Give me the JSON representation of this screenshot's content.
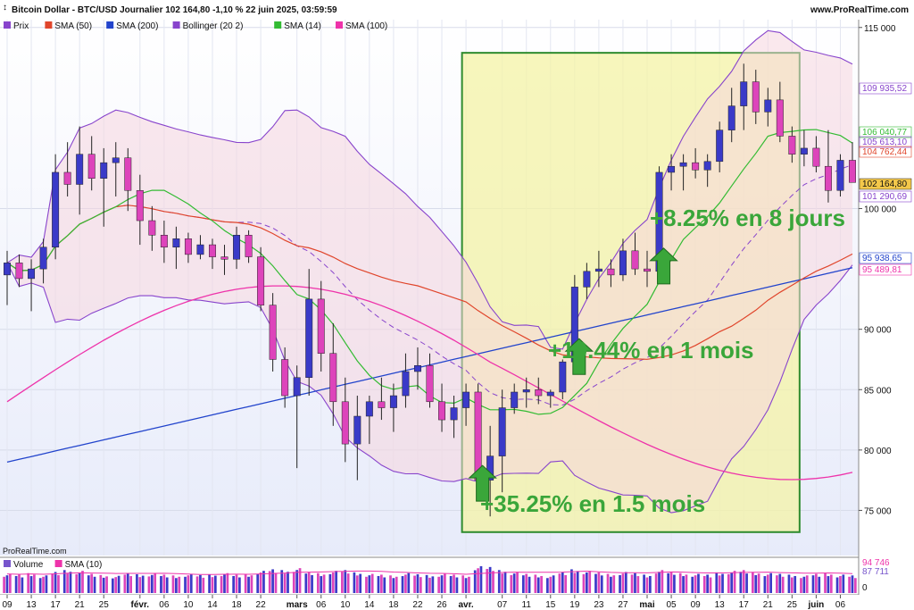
{
  "header": {
    "title": "Bitcoin Dollar - BTC/USD Journalier 102 164,80 -1,10 % 22 juin 2025, 03:59:59",
    "site": "www.ProRealTime.com",
    "watermark": "ProRealTime.com"
  },
  "legend": [
    {
      "label": "Prix",
      "color": "#8844cc"
    },
    {
      "label": "SMA (50)",
      "color": "#e0452b"
    },
    {
      "label": "SMA (200)",
      "color": "#2244cc"
    },
    {
      "label": "Bollinger (20 2)",
      "color": "#8844cc"
    },
    {
      "label": "SMA (14)",
      "color": "#33bb33"
    },
    {
      "label": "SMA (100)",
      "color": "#ee33aa"
    }
  ],
  "volume_legend": [
    {
      "label": "Volume",
      "color": "#7755cc"
    },
    {
      "label": "SMA (10)",
      "color": "#ee33aa"
    }
  ],
  "colors": {
    "up": "#3a3ac8",
    "down": "#dd44bb",
    "sma14": "#33bb33",
    "sma50": "#e0452b",
    "sma100": "#ee33aa",
    "sma200": "#2244cc",
    "bollinger": "#8844cc",
    "band_fill": "#f6d6de",
    "highlight_fill": "#f4f3a6",
    "highlight_border": "#2e8b2e",
    "arrow": "#3aa63a"
  },
  "annotations": [
    {
      "text": "+35.25% en 1.5 mois",
      "date_index": 39
    },
    {
      "text": "+19.44% en 1 mois",
      "date_index": 47
    },
    {
      "text": "+8.25% en 8 jours",
      "date_index": 54
    }
  ],
  "price_labels": [
    {
      "text": "109 935,52",
      "value": 109935.52,
      "color": "#8844cc"
    },
    {
      "text": "106 040,77",
      "value": 106040.77,
      "color": "#33bb33"
    },
    {
      "text": "105 613,10",
      "value": 105613.1,
      "color": "#8844cc"
    },
    {
      "text": "104 762,44",
      "value": 104762.44,
      "color": "#e0452b"
    },
    {
      "text": "102 164,80",
      "value": 102164.8,
      "color": "#111111",
      "boxed": true
    },
    {
      "text": "101 290,69",
      "value": 101290.69,
      "color": "#8844cc"
    },
    {
      "text": "95 938,65",
      "value": 95938.65,
      "color": "#2244cc"
    },
    {
      "text": "95 489,81",
      "value": 95489.81,
      "color": "#ee33aa"
    }
  ],
  "volume_labels": [
    {
      "text": "94 746",
      "color": "#ee33aa"
    },
    {
      "text": "87 711",
      "color": "#7755cc"
    },
    {
      "text": "0",
      "color": "#111111"
    }
  ],
  "chart_data": {
    "type": "candlestick",
    "y_ticks": [
      {
        "value": 115000,
        "label": "115 000"
      },
      {
        "value": 100000,
        "label": "100 000"
      },
      {
        "value": 90000,
        "label": "90 000"
      },
      {
        "value": 85000,
        "label": "85 000"
      },
      {
        "value": 80000,
        "label": "80 000"
      },
      {
        "value": 75000,
        "label": "75 000"
      }
    ],
    "ylim": [
      72000,
      115500
    ],
    "x_ticks": [
      {
        "label": "09",
        "index": 0
      },
      {
        "label": "13",
        "index": 2
      },
      {
        "label": "17",
        "index": 4
      },
      {
        "label": "21",
        "index": 6
      },
      {
        "label": "25",
        "index": 8
      },
      {
        "label": "févr.",
        "index": 11
      },
      {
        "label": "06",
        "index": 13
      },
      {
        "label": "10",
        "index": 15
      },
      {
        "label": "14",
        "index": 17
      },
      {
        "label": "18",
        "index": 19
      },
      {
        "label": "22",
        "index": 21
      },
      {
        "label": "mars",
        "index": 24
      },
      {
        "label": "06",
        "index": 26
      },
      {
        "label": "10",
        "index": 28
      },
      {
        "label": "14",
        "index": 30
      },
      {
        "label": "18",
        "index": 32
      },
      {
        "label": "22",
        "index": 34
      },
      {
        "label": "26",
        "index": 36
      },
      {
        "label": "avr.",
        "index": 38
      },
      {
        "label": "07",
        "index": 41
      },
      {
        "label": "11",
        "index": 43
      },
      {
        "label": "15",
        "index": 45
      },
      {
        "label": "19",
        "index": 47
      },
      {
        "label": "23",
        "index": 49
      },
      {
        "label": "27",
        "index": 51
      },
      {
        "label": "mai",
        "index": 53
      },
      {
        "label": "05",
        "index": 55
      },
      {
        "label": "09",
        "index": 57
      },
      {
        "label": "13",
        "index": 59
      },
      {
        "label": "17",
        "index": 61
      },
      {
        "label": "21",
        "index": 63
      },
      {
        "label": "25",
        "index": 65
      },
      {
        "label": "juin",
        "index": 67
      },
      {
        "label": "06",
        "index": 69
      }
    ],
    "highlight_range": {
      "start_index": 39,
      "end_index": 64,
      "y_low": 73200,
      "y_high": 112900
    },
    "candles": [
      [
        94500,
        96500,
        92000,
        95500
      ],
      [
        95500,
        96200,
        93500,
        94200
      ],
      [
        94200,
        95800,
        91500,
        95000
      ],
      [
        95000,
        97500,
        93800,
        96800
      ],
      [
        96800,
        104500,
        95800,
        103000
      ],
      [
        103000,
        105500,
        101000,
        102000
      ],
      [
        102000,
        106800,
        99500,
        104500
      ],
      [
        104500,
        106000,
        101500,
        102500
      ],
      [
        102500,
        105000,
        98500,
        103800
      ],
      [
        103800,
        105500,
        101000,
        104200
      ],
      [
        104200,
        105000,
        99800,
        101500
      ],
      [
        101500,
        102800,
        97000,
        99000
      ],
      [
        99000,
        100200,
        96500,
        97800
      ],
      [
        97800,
        99000,
        95500,
        96800
      ],
      [
        96800,
        98500,
        95000,
        97500
      ],
      [
        97500,
        98000,
        95500,
        96200
      ],
      [
        96200,
        97800,
        95800,
        97000
      ],
      [
        97000,
        97500,
        95000,
        96000
      ],
      [
        96000,
        97000,
        94500,
        95800
      ],
      [
        95800,
        98500,
        95000,
        97800
      ],
      [
        97800,
        98200,
        95500,
        96000
      ],
      [
        96000,
        96800,
        91500,
        92000
      ],
      [
        92000,
        93000,
        86500,
        87500
      ],
      [
        87500,
        88500,
        83500,
        84500
      ],
      [
        84500,
        87000,
        78500,
        86000
      ],
      [
        86000,
        95000,
        84500,
        92500
      ],
      [
        92500,
        94000,
        86500,
        88000
      ],
      [
        88000,
        90500,
        82000,
        84000
      ],
      [
        84000,
        86000,
        79000,
        80500
      ],
      [
        80500,
        84500,
        77500,
        82800
      ],
      [
        82800,
        84500,
        80500,
        84000
      ],
      [
        84000,
        86000,
        82500,
        83500
      ],
      [
        83500,
        85500,
        81500,
        84500
      ],
      [
        84500,
        88000,
        83500,
        86500
      ],
      [
        86500,
        88500,
        85000,
        87000
      ],
      [
        87000,
        88000,
        83500,
        84000
      ],
      [
        84000,
        85500,
        81500,
        82500
      ],
      [
        82500,
        84500,
        81000,
        83500
      ],
      [
        83500,
        85500,
        82000,
        84800
      ],
      [
        84800,
        85500,
        76500,
        77500
      ],
      [
        77500,
        82000,
        74500,
        79500
      ],
      [
        79500,
        85000,
        76500,
        83500
      ],
      [
        83500,
        85500,
        83000,
        84800
      ],
      [
        84800,
        86000,
        83500,
        85000
      ],
      [
        85000,
        86000,
        83800,
        84500
      ],
      [
        84500,
        85000,
        83500,
        84800
      ],
      [
        84800,
        87500,
        84200,
        87300
      ],
      [
        87300,
        94500,
        87000,
        93500
      ],
      [
        93500,
        95500,
        92500,
        94800
      ],
      [
        94800,
        96500,
        93500,
        95000
      ],
      [
        95000,
        95800,
        93500,
        94500
      ],
      [
        94500,
        97500,
        94000,
        96500
      ],
      [
        96500,
        98000,
        94500,
        95000
      ],
      [
        95000,
        96500,
        93500,
        94800
      ],
      [
        94800,
        103500,
        94500,
        103000
      ],
      [
        103000,
        104500,
        101500,
        103500
      ],
      [
        103500,
        104500,
        101500,
        103800
      ],
      [
        103800,
        105000,
        102500,
        103200
      ],
      [
        103200,
        104500,
        101800,
        103900
      ],
      [
        103900,
        107200,
        103000,
        106500
      ],
      [
        106500,
        110000,
        105500,
        108500
      ],
      [
        108500,
        112000,
        106500,
        110500
      ],
      [
        110500,
        111500,
        107000,
        108000
      ],
      [
        108000,
        110000,
        106800,
        109000
      ],
      [
        109000,
        110500,
        105500,
        106000
      ],
      [
        106000,
        106800,
        103800,
        104500
      ],
      [
        104500,
        106500,
        103500,
        105000
      ],
      [
        105000,
        106000,
        103000,
        103500
      ],
      [
        103500,
        106500,
        100500,
        101500
      ],
      [
        101500,
        104500,
        101000,
        104000
      ],
      [
        104000,
        105500,
        102200,
        102165
      ]
    ],
    "volumes": [
      50,
      48,
      52,
      46,
      55,
      60,
      58,
      50,
      47,
      45,
      52,
      49,
      51,
      48,
      46,
      50,
      47,
      49,
      52,
      48,
      50,
      58,
      62,
      60,
      65,
      55,
      52,
      58,
      60,
      54,
      50,
      48,
      46,
      52,
      49,
      47,
      50,
      48,
      46,
      70,
      68,
      60,
      55,
      50,
      48,
      46,
      55,
      62,
      58,
      54,
      50,
      55,
      52,
      48,
      60,
      56,
      52,
      50,
      48,
      54,
      58,
      60,
      55,
      52,
      50,
      48,
      46,
      50,
      52,
      48,
      46
    ]
  }
}
